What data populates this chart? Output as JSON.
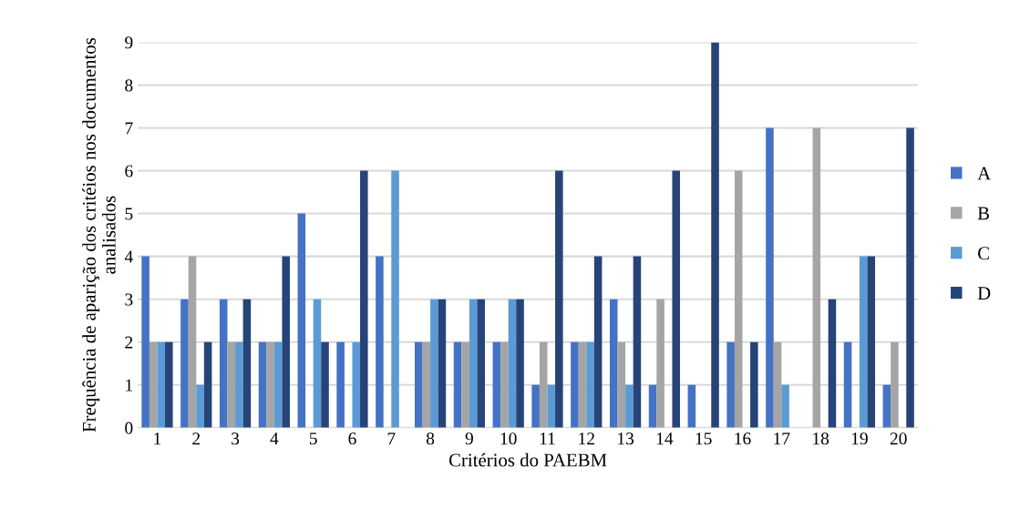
{
  "chart_data": {
    "type": "bar",
    "xlabel": "Critérios do PAEBM",
    "ylabel": "Frequência de aparição dos critéios nos documentos analisados",
    "categories": [
      "1",
      "2",
      "3",
      "4",
      "5",
      "6",
      "7",
      "8",
      "9",
      "10",
      "11",
      "12",
      "13",
      "14",
      "15",
      "16",
      "17",
      "18",
      "19",
      "20"
    ],
    "series": [
      {
        "name": "A",
        "color": "#4472c4",
        "values": [
          4,
          3,
          3,
          2,
          5,
          2,
          4,
          2,
          2,
          2,
          1,
          2,
          3,
          1,
          1,
          2,
          7,
          0,
          2,
          1
        ]
      },
      {
        "name": "B",
        "color": "#a5a5a5",
        "values": [
          2,
          4,
          2,
          2,
          0,
          0,
          0,
          2,
          2,
          2,
          2,
          2,
          2,
          3,
          0,
          6,
          2,
          7,
          0,
          2
        ]
      },
      {
        "name": "C",
        "color": "#5b9bd5",
        "values": [
          2,
          1,
          2,
          2,
          3,
          2,
          6,
          3,
          3,
          3,
          1,
          2,
          1,
          0,
          0,
          0,
          1,
          0,
          4,
          0
        ]
      },
      {
        "name": "D",
        "color": "#264478",
        "values": [
          2,
          2,
          3,
          4,
          2,
          6,
          0,
          3,
          3,
          3,
          6,
          4,
          4,
          6,
          9,
          2,
          0,
          3,
          4,
          7
        ]
      }
    ],
    "ylim": [
      0,
      9
    ],
    "yticks": [
      0,
      1,
      2,
      3,
      4,
      5,
      6,
      7,
      8,
      9
    ],
    "grid": "y",
    "legend": "right"
  }
}
